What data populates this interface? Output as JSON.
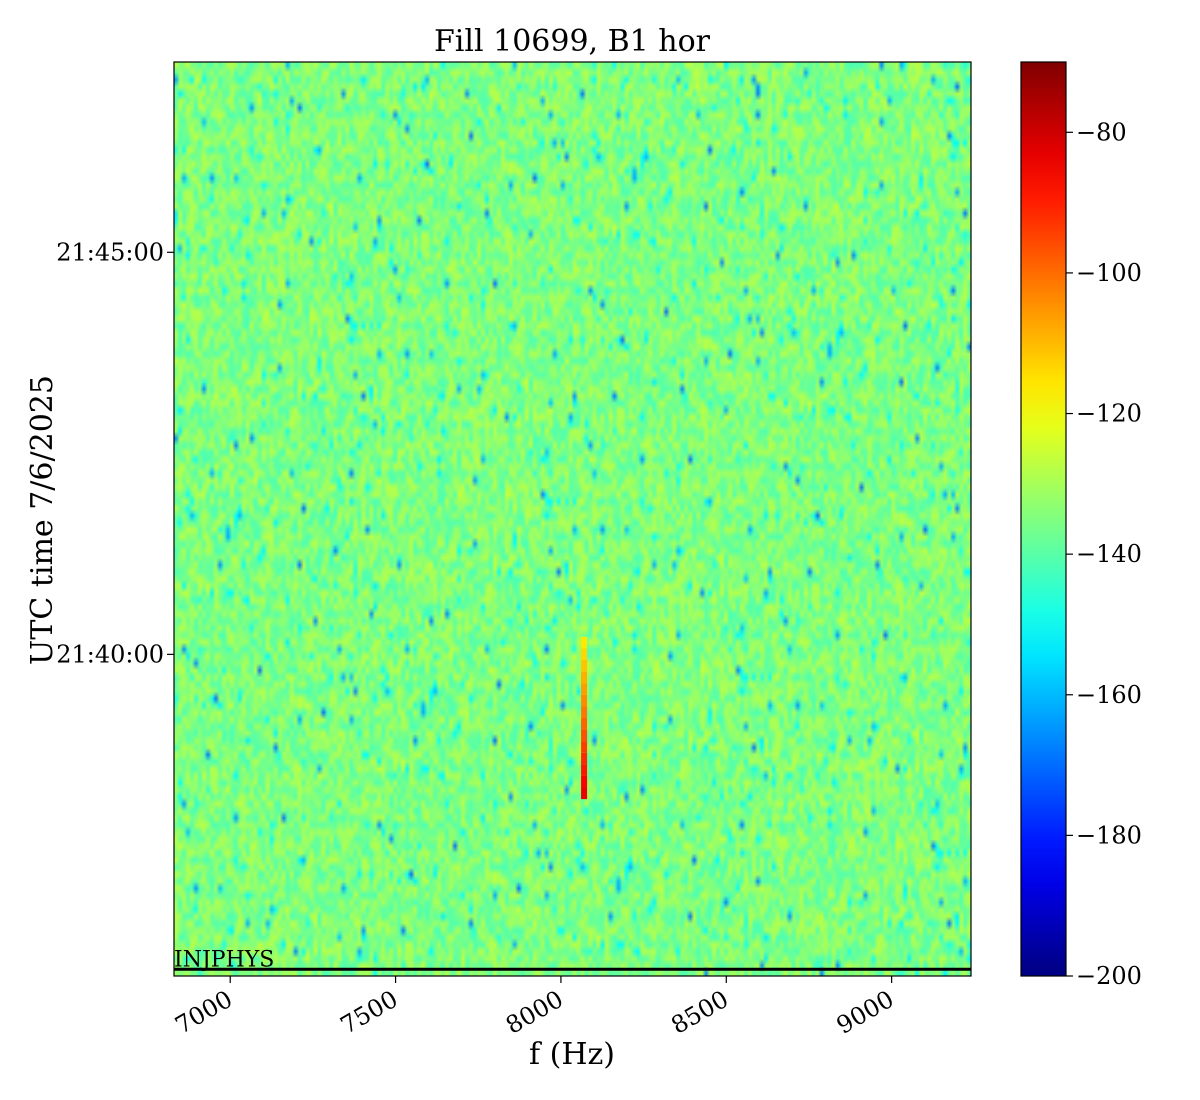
{
  "chart_data": {
    "type": "heatmap",
    "title": "Fill 10699, B1 hor",
    "xlabel": "f (Hz)",
    "ylabel": "UTC time 7/6/2025",
    "xlim": [
      6830,
      9240
    ],
    "ylim": [
      "21:36:00",
      "21:47:22"
    ],
    "x_ticks": [
      7000,
      7500,
      8000,
      8500,
      9000
    ],
    "x_tick_labels": [
      "7000",
      "7500",
      "8000",
      "8500",
      "9000"
    ],
    "y_ticks": [
      "21:45:00",
      "21:40:00"
    ],
    "colorbar": {
      "colormap": "jet",
      "range": [
        -200,
        -70
      ],
      "ticks": [
        -80,
        -100,
        -120,
        -140,
        -160,
        -180,
        -200
      ],
      "tick_labels": [
        "−80",
        "−100",
        "−120",
        "−140",
        "−160",
        "−180",
        "−200"
      ]
    },
    "background_level_db": -135,
    "signal": {
      "frequency_hz": 8070,
      "time_start": "21:38:12",
      "time_end": "21:40:13",
      "peak_db": -84
    },
    "annotations": [
      {
        "text": "INJPHYS",
        "time": "21:36:05"
      }
    ],
    "grid": false
  },
  "colors": {
    "axis": "#000000",
    "background": "#ffffff"
  }
}
